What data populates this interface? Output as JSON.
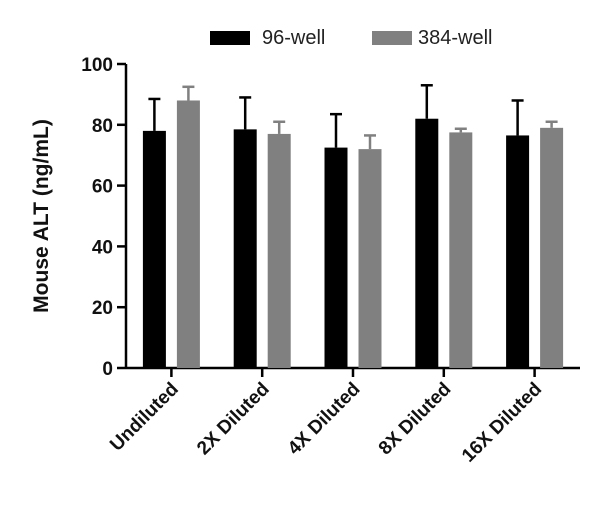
{
  "chart_data": {
    "type": "bar",
    "title": "",
    "xlabel": "",
    "ylabel": "Mouse ALT (ng/mL)",
    "ylim": [
      0,
      100
    ],
    "yticks": [
      "0",
      "20",
      "40",
      "60",
      "80",
      "100"
    ],
    "categories": [
      "Undiluted",
      "2X Diluted",
      "4X Diluted",
      "8X Diluted",
      "16X Diluted"
    ],
    "series": [
      {
        "name": "96-well",
        "color": "#000000",
        "values": [
          78,
          78.5,
          72.5,
          82,
          76.5
        ],
        "errors": [
          10.5,
          10.5,
          11,
          11,
          11.5
        ]
      },
      {
        "name": "384-well",
        "color": "#808080",
        "values": [
          88,
          77,
          72,
          77.5,
          79
        ],
        "errors": [
          4.5,
          4,
          4.5,
          1.2,
          2
        ]
      }
    ],
    "legend_position": "top"
  }
}
